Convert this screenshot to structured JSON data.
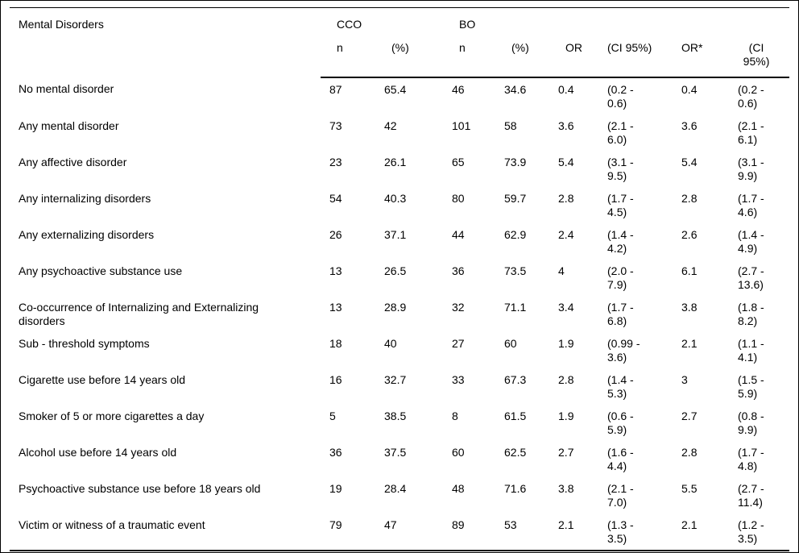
{
  "table": {
    "first_col_header": "Mental Disorders",
    "group_headers": {
      "cco": "CCO",
      "bo": "BO"
    },
    "sub_headers": {
      "cco_n": "n",
      "cco_pct": "(%)",
      "bo_n": "n",
      "bo_pct": "(%)",
      "or": "OR",
      "ci": "(CI 95%)",
      "or_adj": "OR*",
      "ci_adj": "(CI 95%)"
    },
    "rows": [
      {
        "label": "No mental disorder",
        "cco_n": "87",
        "cco_pct": "65.4",
        "bo_n": "46",
        "bo_pct": "34.6",
        "or": "0.4",
        "ci": "(0.2 - 0.6)",
        "or_adj": "0.4",
        "ci_adj": "(0.2 - 0.6)"
      },
      {
        "label": "Any mental disorder",
        "cco_n": "73",
        "cco_pct": "42",
        "bo_n": "101",
        "bo_pct": "58",
        "or": "3.6",
        "ci": "(2.1 - 6.0)",
        "or_adj": "3.6",
        "ci_adj": "(2.1 - 6.1)"
      },
      {
        "label": "Any affective disorder",
        "cco_n": "23",
        "cco_pct": "26.1",
        "bo_n": "65",
        "bo_pct": "73.9",
        "or": "5.4",
        "ci": "(3.1 - 9.5)",
        "or_adj": "5.4",
        "ci_adj": "(3.1 - 9.9)"
      },
      {
        "label": "Any internalizing disorders",
        "cco_n": "54",
        "cco_pct": "40.3",
        "bo_n": "80",
        "bo_pct": "59.7",
        "or": "2.8",
        "ci": "(1.7 - 4.5)",
        "or_adj": "2.8",
        "ci_adj": "(1.7 - 4.6)"
      },
      {
        "label": "Any externalizing disorders",
        "cco_n": "26",
        "cco_pct": "37.1",
        "bo_n": "44",
        "bo_pct": "62.9",
        "or": "2.4",
        "ci": "(1.4 - 4.2)",
        "or_adj": "2.6",
        "ci_adj": "(1.4 - 4.9)"
      },
      {
        "label": "Any psychoactive substance use",
        "cco_n": "13",
        "cco_pct": "26.5",
        "bo_n": "36",
        "bo_pct": "73.5",
        "or": "4",
        "ci": "(2.0 - 7.9)",
        "or_adj": "6.1",
        "ci_adj": "(2.7 - 13.6)"
      },
      {
        "label": "Co-occurrence of Internalizing and Externalizing disorders",
        "cco_n": "13",
        "cco_pct": "28.9",
        "bo_n": "32",
        "bo_pct": "71.1",
        "or": "3.4",
        "ci": "(1.7 - 6.8)",
        "or_adj": "3.8",
        "ci_adj": "(1.8 - 8.2)"
      },
      {
        "label": "Sub - threshold symptoms",
        "cco_n": "18",
        "cco_pct": "40",
        "bo_n": "27",
        "bo_pct": "60",
        "or": "1.9",
        "ci": "(0.99 - 3.6)",
        "or_adj": "2.1",
        "ci_adj": "(1.1 - 4.1)"
      },
      {
        "label": "Cigarette use before 14 years old",
        "cco_n": "16",
        "cco_pct": "32.7",
        "bo_n": "33",
        "bo_pct": "67.3",
        "or": "2.8",
        "ci": "(1.4 - 5.3)",
        "or_adj": "3",
        "ci_adj": "(1.5 - 5.9)"
      },
      {
        "label": "Smoker of 5 or more cigarettes a day",
        "cco_n": "5",
        "cco_pct": "38.5",
        "bo_n": "8",
        "bo_pct": "61.5",
        "or": "1.9",
        "ci": "(0.6 - 5.9)",
        "or_adj": "2.7",
        "ci_adj": "(0.8 - 9.9)"
      },
      {
        "label": "Alcohol use before 14 years old",
        "cco_n": "36",
        "cco_pct": "37.5",
        "bo_n": "60",
        "bo_pct": "62.5",
        "or": "2.7",
        "ci": "(1.6 - 4.4)",
        "or_adj": "2.8",
        "ci_adj": "(1.7 - 4.8)"
      },
      {
        "label": "Psychoactive substance use before 18 years old",
        "cco_n": "19",
        "cco_pct": "28.4",
        "bo_n": "48",
        "bo_pct": "71.6",
        "or": "3.8",
        "ci": "(2.1 - 7.0)",
        "or_adj": "5.5",
        "ci_adj": "(2.7 - 11.4)"
      },
      {
        "label": "Victim or witness of a traumatic event",
        "cco_n": "79",
        "cco_pct": "47",
        "bo_n": "89",
        "bo_pct": "53",
        "or": "2.1",
        "ci": "(1.3 - 3.5)",
        "or_adj": "2.1",
        "ci_adj": "(1.2 - 3.5)"
      }
    ]
  }
}
